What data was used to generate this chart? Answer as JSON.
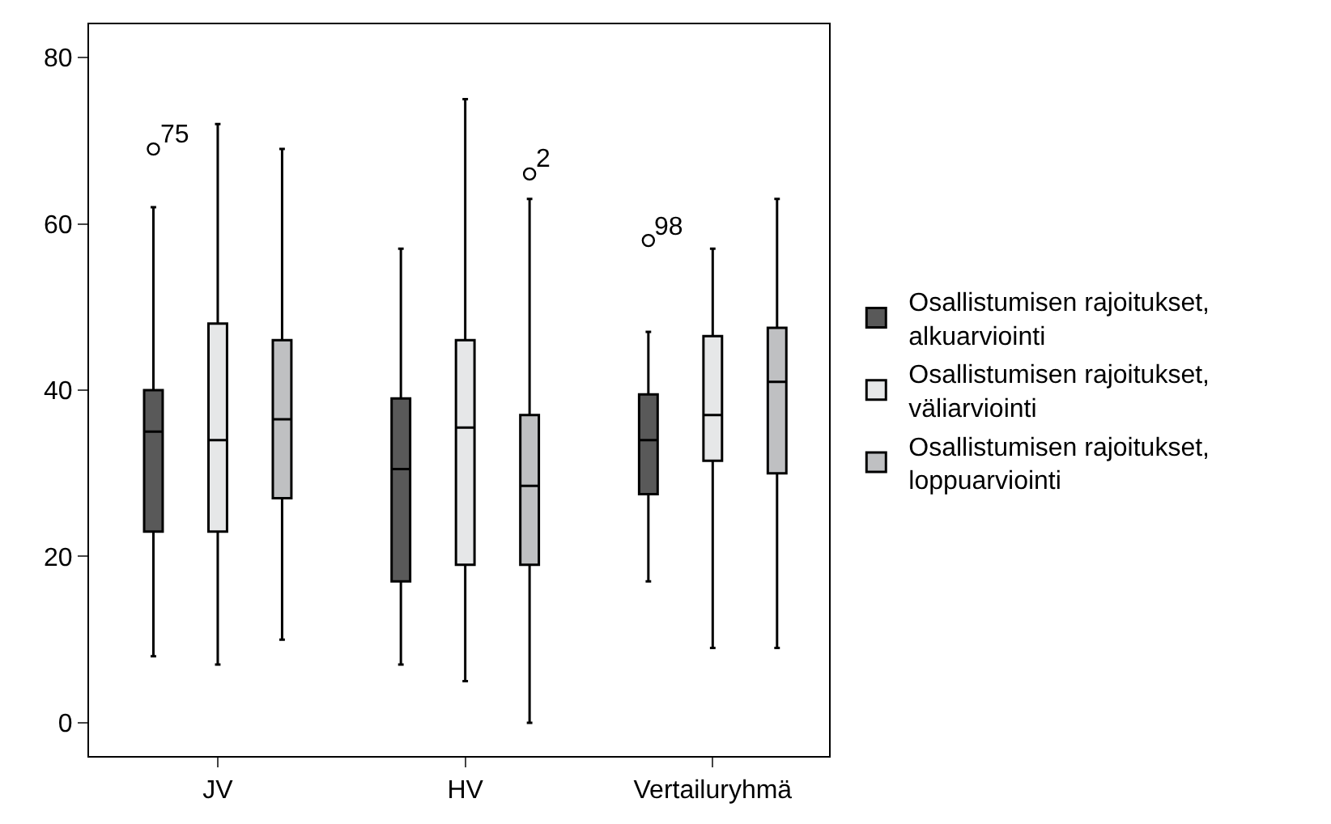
{
  "chart_data": {
    "type": "box",
    "categories": [
      "JV",
      "HV",
      "Vertailuryhmä"
    ],
    "series": [
      {
        "name": "Osallistumisen rajoitukset, alkuarviointi",
        "color": "#595959",
        "boxes": [
          {
            "low": 8,
            "q1": 23,
            "median": 35,
            "q3": 40,
            "high": 62,
            "outliers": [
              69
            ]
          },
          {
            "low": 7,
            "q1": 17,
            "median": 30.5,
            "q3": 39,
            "high": 57
          },
          {
            "low": 17,
            "q1": 27.5,
            "median": 34,
            "q3": 39.5,
            "high": 47,
            "outliers": [
              58
            ]
          }
        ]
      },
      {
        "name": "Osallistumisen rajoitukset, väliarviointi",
        "color": "#e6e7e8",
        "boxes": [
          {
            "low": 7,
            "q1": 23,
            "median": 34,
            "q3": 48,
            "high": 72
          },
          {
            "low": 5,
            "q1": 19,
            "median": 35.5,
            "q3": 46,
            "high": 75
          },
          {
            "low": 9,
            "q1": 31.5,
            "median": 37,
            "q3": 46.5,
            "high": 57
          }
        ]
      },
      {
        "name": "Osallistumisen rajoitukset, loppuarviointi",
        "color": "#bfc0c2",
        "boxes": [
          {
            "low": 10,
            "q1": 27,
            "median": 36.5,
            "q3": 46,
            "high": 69
          },
          {
            "low": 0,
            "q1": 19,
            "median": 28.5,
            "q3": 37,
            "high": 63,
            "outliers": [
              66
            ]
          },
          {
            "low": 9,
            "q1": 30,
            "median": 41,
            "q3": 47.5,
            "high": 63
          }
        ]
      }
    ],
    "annotations": [
      "75",
      "2",
      "98"
    ],
    "ylim": [
      -4,
      84
    ],
    "yticks": [
      0,
      20,
      40,
      60,
      80
    ],
    "legend": "right"
  }
}
